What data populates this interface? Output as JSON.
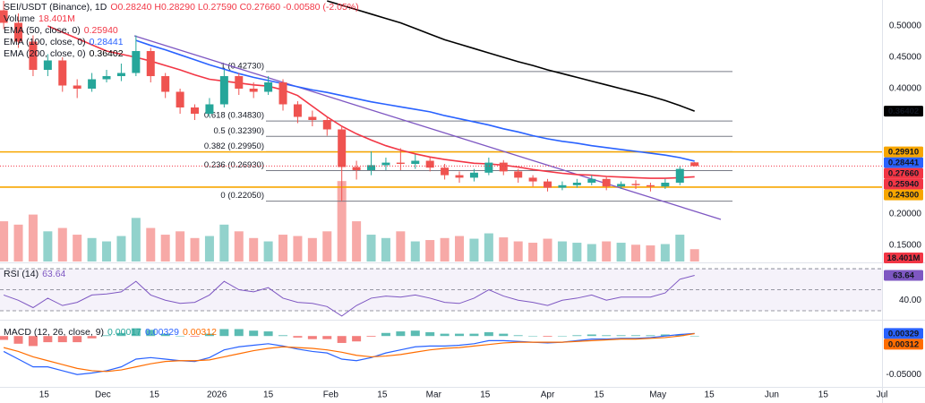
{
  "chart_data": [
    {
      "type": "candlestick",
      "symbol": "SEI/USDT (Binance), 1D",
      "ohlc_label": "O0.28240 H0.28290 L0.27590 C0.27660 -0.00580 (-2.05%)",
      "x": [
        "2025-11-04",
        "2025-11-08",
        "2025-11-12",
        "2025-11-16",
        "2025-11-20",
        "2025-11-24",
        "2025-11-28",
        "2025-12-02",
        "2025-12-06",
        "2025-12-10",
        "2025-12-14",
        "2025-12-18",
        "2025-12-22",
        "2025-12-26",
        "2025-12-30",
        "2026-01-03",
        "2026-01-07",
        "2026-01-11",
        "2026-01-15",
        "2026-01-19",
        "2026-01-23",
        "2026-01-27",
        "2026-01-31",
        "2026-02-04",
        "2026-02-08",
        "2026-02-12",
        "2026-02-16",
        "2026-02-20",
        "2026-02-24",
        "2026-02-28",
        "2026-03-04",
        "2026-03-08",
        "2026-03-12",
        "2026-03-16",
        "2026-03-20",
        "2026-03-24",
        "2026-03-28",
        "2026-04-01",
        "2026-04-05",
        "2026-04-09",
        "2026-04-13",
        "2026-04-17",
        "2026-04-21",
        "2026-04-25",
        "2026-04-29",
        "2026-05-03",
        "2026-05-07",
        "2026-05-11"
      ],
      "xlim": [
        "2025-11-03",
        "2026-07-01"
      ],
      "xticks": [
        {
          "value": "2025-11-15",
          "label": "15"
        },
        {
          "value": "2025-12-01",
          "label": "Dec"
        },
        {
          "value": "2025-12-15",
          "label": "15"
        },
        {
          "value": "2026-01-01",
          "label": "2026"
        },
        {
          "value": "2026-01-15",
          "label": "15"
        },
        {
          "value": "2026-02-01",
          "label": "Feb"
        },
        {
          "value": "2026-02-15",
          "label": "15"
        },
        {
          "value": "2026-03-01",
          "label": "Mar"
        },
        {
          "value": "2026-03-15",
          "label": "15"
        },
        {
          "value": "2026-04-01",
          "label": "Apr"
        },
        {
          "value": "2026-04-15",
          "label": "15"
        },
        {
          "value": "2026-05-01",
          "label": "May"
        },
        {
          "value": "2026-05-15",
          "label": "15"
        },
        {
          "value": "2026-06-01",
          "label": "Jun"
        },
        {
          "value": "2026-06-15",
          "label": "15"
        },
        {
          "value": "2026-07-01",
          "label": "Jul"
        }
      ],
      "ylim": [
        0.1243,
        0.5414
      ],
      "yticks": [
        {
          "value": 0.5,
          "label": "0.50000"
        },
        {
          "value": 0.45,
          "label": "0.45000"
        },
        {
          "value": 0.4,
          "label": "0.40000"
        },
        {
          "value": 0.2,
          "label": "0.20000"
        },
        {
          "value": 0.15,
          "label": "0.15000"
        }
      ],
      "open": [
        0.525,
        0.505,
        0.475,
        0.43,
        0.445,
        0.405,
        0.4,
        0.415,
        0.42,
        0.425,
        0.46,
        0.42,
        0.395,
        0.37,
        0.36,
        0.375,
        0.42,
        0.4,
        0.395,
        0.41,
        0.375,
        0.355,
        0.35,
        0.335,
        0.275,
        0.27,
        0.278,
        0.282,
        0.28,
        0.285,
        0.274,
        0.262,
        0.258,
        0.266,
        0.282,
        0.268,
        0.258,
        0.252,
        0.242,
        0.246,
        0.25,
        0.256,
        0.244,
        0.248,
        0.246,
        0.244,
        0.25,
        0.2824
      ],
      "high": [
        0.54,
        0.52,
        0.485,
        0.455,
        0.45,
        0.415,
        0.425,
        0.43,
        0.44,
        0.485,
        0.465,
        0.425,
        0.4,
        0.375,
        0.385,
        0.43,
        0.425,
        0.41,
        0.42,
        0.415,
        0.38,
        0.365,
        0.355,
        0.34,
        0.285,
        0.3,
        0.29,
        0.305,
        0.295,
        0.29,
        0.28,
        0.268,
        0.272,
        0.29,
        0.286,
        0.272,
        0.262,
        0.256,
        0.252,
        0.256,
        0.262,
        0.26,
        0.252,
        0.254,
        0.25,
        0.256,
        0.276,
        0.2829
      ],
      "low": [
        0.495,
        0.465,
        0.42,
        0.42,
        0.395,
        0.385,
        0.395,
        0.41,
        0.412,
        0.42,
        0.41,
        0.385,
        0.36,
        0.35,
        0.355,
        0.37,
        0.39,
        0.385,
        0.39,
        0.365,
        0.345,
        0.34,
        0.325,
        0.2205,
        0.255,
        0.262,
        0.27,
        0.27,
        0.272,
        0.268,
        0.255,
        0.25,
        0.252,
        0.262,
        0.262,
        0.25,
        0.244,
        0.236,
        0.238,
        0.242,
        0.246,
        0.238,
        0.24,
        0.24,
        0.236,
        0.24,
        0.246,
        0.2759
      ],
      "close": [
        0.505,
        0.475,
        0.43,
        0.445,
        0.405,
        0.4,
        0.415,
        0.42,
        0.425,
        0.46,
        0.42,
        0.395,
        0.37,
        0.36,
        0.375,
        0.42,
        0.4,
        0.395,
        0.41,
        0.375,
        0.355,
        0.35,
        0.335,
        0.275,
        0.27,
        0.278,
        0.282,
        0.28,
        0.285,
        0.274,
        0.262,
        0.258,
        0.266,
        0.282,
        0.268,
        0.258,
        0.252,
        0.242,
        0.246,
        0.25,
        0.256,
        0.244,
        0.248,
        0.246,
        0.244,
        0.25,
        0.272,
        0.2766
      ],
      "close_label": "0.27660",
      "close_color": "#f23645",
      "up_color": "#26a69a",
      "down_color": "#ef5350",
      "series": [
        {
          "name": "EMA (50, close, 0)",
          "color": "#f23645",
          "value_label": "0.25940",
          "values": [
            null,
            null,
            null,
            0.5,
            0.49,
            0.48,
            0.47,
            0.46,
            0.455,
            0.45,
            0.444,
            0.437,
            0.43,
            0.422,
            0.415,
            0.412,
            0.409,
            0.406,
            0.404,
            0.398,
            0.389,
            0.372,
            0.355,
            0.34,
            0.328,
            0.318,
            0.309,
            0.302,
            0.296,
            0.291,
            0.287,
            0.284,
            0.281,
            0.28,
            0.278,
            0.275,
            0.271,
            0.268,
            0.265,
            0.263,
            0.262,
            0.26,
            0.259,
            0.258,
            0.257,
            0.257,
            0.258,
            0.2594
          ]
        },
        {
          "name": "EMA (100, close, 0)",
          "color": "#2962ff",
          "value_label": "0.28441",
          "values": [
            null,
            null,
            null,
            null,
            null,
            null,
            null,
            null,
            null,
            0.477,
            0.469,
            0.462,
            0.454,
            0.446,
            0.438,
            0.431,
            0.424,
            0.418,
            0.413,
            0.408,
            0.403,
            0.398,
            0.394,
            0.389,
            0.384,
            0.379,
            0.375,
            0.371,
            0.367,
            0.363,
            0.357,
            0.352,
            0.347,
            0.342,
            0.336,
            0.331,
            0.325,
            0.32,
            0.316,
            0.313,
            0.309,
            0.306,
            0.303,
            0.3,
            0.297,
            0.294,
            0.29,
            0.28441
          ]
        },
        {
          "name": "EMA (200, close, 0)",
          "color": "#000000",
          "value_label": "0.36402",
          "values": [
            null,
            null,
            null,
            null,
            null,
            null,
            null,
            null,
            null,
            null,
            null,
            null,
            null,
            null,
            null,
            null,
            null,
            null,
            null,
            null,
            null,
            null,
            0.54,
            0.533,
            0.526,
            0.519,
            0.512,
            0.505,
            0.496,
            0.487,
            0.478,
            0.471,
            0.464,
            0.457,
            0.45,
            0.443,
            0.437,
            0.43,
            0.424,
            0.418,
            0.412,
            0.406,
            0.4,
            0.394,
            0.388,
            0.381,
            0.373,
            0.36402
          ]
        }
      ],
      "fib_color": "#787b86",
      "fib_levels": [
        {
          "value": 0.4273,
          "label": "1 (0.42730)"
        },
        {
          "value": 0.3483,
          "label": "0.618 (0.34830)"
        },
        {
          "value": 0.3239,
          "label": "0.5 (0.32390)"
        },
        {
          "value": 0.2995,
          "label": "0.382 (0.29950)"
        },
        {
          "value": 0.2693,
          "label": "0.236 (0.26930)"
        },
        {
          "value": 0.2205,
          "label": "0 (0.22050)"
        }
      ],
      "levels": [
        {
          "value": 0.2991,
          "label": "0.29910",
          "color": "#f7a600",
          "text_color": "#131722"
        },
        {
          "value": 0.243,
          "label": "0.24300",
          "color": "#f7a600",
          "text_color": "#131722"
        }
      ],
      "trendline_color": "#7e57c2"
    },
    {
      "type": "bar",
      "name": "Volume",
      "values": [
        60,
        55,
        70,
        45,
        50,
        40,
        35,
        30,
        38,
        65,
        50,
        40,
        45,
        35,
        38,
        55,
        45,
        35,
        30,
        40,
        38,
        35,
        45,
        120,
        60,
        40,
        35,
        45,
        30,
        32,
        35,
        38,
        34,
        42,
        36,
        30,
        28,
        34,
        30,
        28,
        26,
        30,
        28,
        25,
        24,
        26,
        40,
        18.401
      ],
      "value_label": "18.401M",
      "ylim": [
        0,
        390
      ],
      "up_color": "rgba(38,166,154,0.5)",
      "down_color": "rgba(239,83,80,0.5)",
      "tag_color": "#f23645"
    },
    {
      "type": "line",
      "title": "RSI (14)",
      "color": "#7e57c2",
      "values": [
        45,
        40,
        33,
        42,
        35,
        38,
        45,
        46,
        48,
        58,
        45,
        40,
        37,
        38,
        45,
        58,
        50,
        48,
        52,
        42,
        38,
        37,
        34,
        25,
        35,
        42,
        44,
        43,
        45,
        42,
        38,
        37,
        42,
        50,
        44,
        40,
        38,
        35,
        40,
        42,
        45,
        40,
        43,
        43,
        43,
        47,
        60,
        63.64
      ],
      "ylim": [
        21.5,
        74.3
      ],
      "yticks": [
        {
          "value": 40,
          "label": "40.00"
        }
      ],
      "bands": [
        70,
        50,
        30
      ]
    },
    {
      "type": "macd",
      "title": "MACD (12, 26, close, 9)",
      "ylim": [
        -0.066,
        0.02
      ],
      "yticks": [
        {
          "value": -0.05,
          "label": "-0.05000"
        }
      ],
      "series": [
        {
          "color": "#2962ff",
          "values": [
            -0.02,
            -0.03,
            -0.04,
            -0.04,
            -0.045,
            -0.05,
            -0.048,
            -0.045,
            -0.04,
            -0.03,
            -0.028,
            -0.03,
            -0.032,
            -0.033,
            -0.028,
            -0.018,
            -0.014,
            -0.012,
            -0.01,
            -0.013,
            -0.017,
            -0.02,
            -0.022,
            -0.03,
            -0.032,
            -0.028,
            -0.022,
            -0.018,
            -0.014,
            -0.013,
            -0.013,
            -0.012,
            -0.01,
            -0.006,
            -0.006,
            -0.007,
            -0.008,
            -0.009,
            -0.008,
            -0.006,
            -0.004,
            -0.004,
            -0.003,
            -0.003,
            -0.002,
            0,
            0.002,
            0.00329
          ]
        },
        {
          "color": "#ff6d00",
          "values": [
            -0.015,
            -0.02,
            -0.027,
            -0.032,
            -0.037,
            -0.042,
            -0.045,
            -0.046,
            -0.044,
            -0.04,
            -0.036,
            -0.033,
            -0.032,
            -0.032,
            -0.031,
            -0.027,
            -0.023,
            -0.019,
            -0.016,
            -0.014,
            -0.015,
            -0.016,
            -0.018,
            -0.021,
            -0.025,
            -0.027,
            -0.026,
            -0.024,
            -0.021,
            -0.018,
            -0.016,
            -0.015,
            -0.013,
            -0.011,
            -0.009,
            -0.008,
            -0.008,
            -0.008,
            -0.008,
            -0.007,
            -0.006,
            -0.005,
            -0.004,
            -0.004,
            -0.003,
            -0.002,
            0,
            0.00312
          ]
        }
      ],
      "histogram": {
        "up_color": "#26a69a",
        "down_color": "#ef5350",
        "values": [
          -0.005,
          -0.01,
          -0.013,
          -0.008,
          -0.008,
          -0.008,
          -0.003,
          0.001,
          0.004,
          0.01,
          0.008,
          0.003,
          0,
          -0.001,
          0.003,
          0.009,
          0.009,
          0.007,
          0.006,
          0.001,
          -0.002,
          -0.004,
          -0.004,
          -0.009,
          -0.007,
          -0.001,
          0.004,
          0.006,
          0.007,
          0.005,
          0.003,
          0.003,
          0.003,
          0.005,
          0.003,
          0.001,
          0,
          -0.001,
          0,
          0.001,
          0.002,
          0.001,
          0.001,
          0.001,
          0.001,
          0.002,
          0.002,
          0.00017
        ]
      }
    }
  ]
}
